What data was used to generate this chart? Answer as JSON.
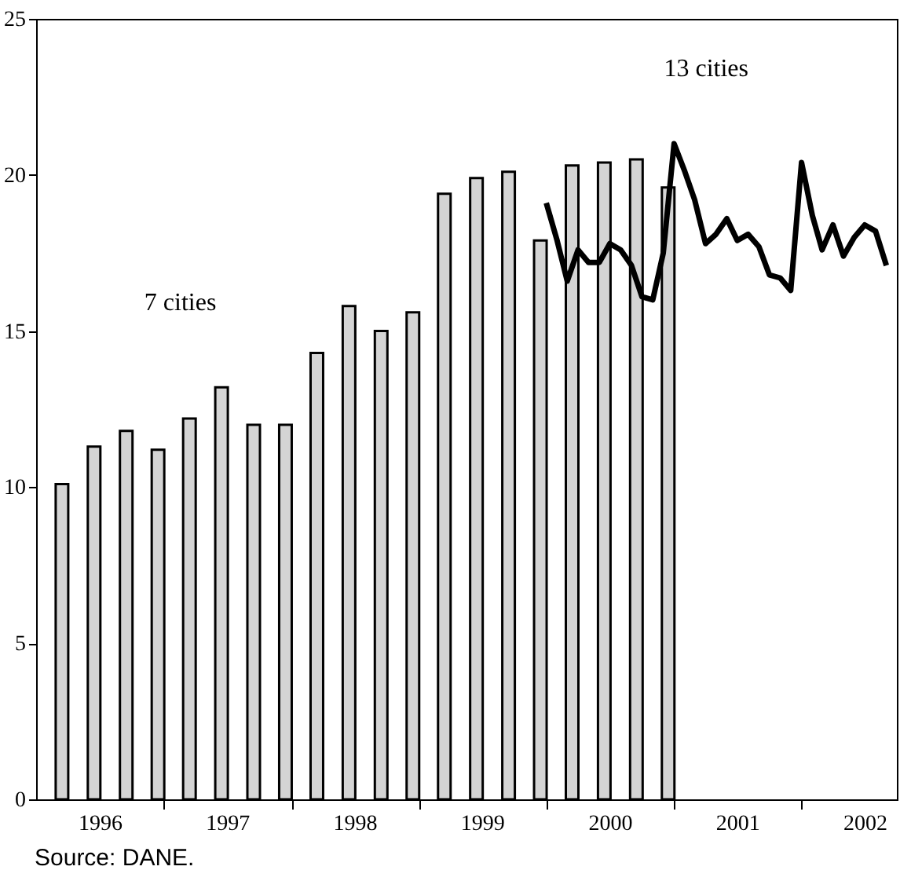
{
  "chart_data": {
    "type": "bar",
    "series": [
      {
        "color": "#d4d4d4",
        "x": [
          "1996-03-15",
          "1996-06-15",
          "1996-09-15",
          "1996-12-15",
          "1997-03-15",
          "1997-06-15",
          "1997-09-15",
          "1997-12-15",
          "1998-03-15",
          "1998-06-15",
          "1998-09-15",
          "1998-12-15",
          "1999-03-15",
          "1999-06-15",
          "1999-09-15",
          "1999-12-15",
          "2000-03-15",
          "2000-06-15",
          "2000-09-15",
          "2000-12-15"
        ],
        "values": [
          10.1,
          11.3,
          11.8,
          11.2,
          12.2,
          13.2,
          12.0,
          12.0,
          14.3,
          15.8,
          15.0,
          15.6,
          19.4,
          19.9,
          20.1,
          17.9,
          20.3,
          20.4,
          20.5,
          19.6
        ]
      },
      {
        "type": "line",
        "color": "#000000",
        "x": [
          "2000-01",
          "2000-02",
          "2000-03",
          "2000-04",
          "2000-05",
          "2000-06",
          "2000-07",
          "2000-08",
          "2000-09",
          "2000-10",
          "2000-11",
          "2000-12",
          "2001-01",
          "2001-02",
          "2001-03",
          "2001-04",
          "2001-05",
          "2001-06",
          "2001-07",
          "2001-08",
          "2001-09",
          "2001-10",
          "2001-11",
          "2001-12",
          "2002-01",
          "2002-02",
          "2002-03",
          "2002-04",
          "2002-05",
          "2002-06",
          "2002-07",
          "2002-08",
          "2002-09"
        ],
        "values": [
          19.1,
          17.9,
          16.6,
          17.6,
          17.2,
          17.2,
          17.8,
          17.6,
          17.1,
          16.1,
          16.0,
          17.5,
          21.0,
          20.1,
          19.2,
          17.8,
          18.1,
          18.6,
          17.9,
          18.1,
          17.7,
          16.8,
          16.7,
          16.3,
          20.4,
          18.7,
          17.6,
          18.4,
          17.4,
          18.0,
          18.4,
          18.2,
          17.1
        ]
      }
    ],
    "xlim": [
      "1996-01",
      "2002-10"
    ],
    "xticks": [
      {
        "value": "1996-07",
        "label": "1996"
      },
      {
        "value": "1997",
        "label": null
      },
      {
        "value": "1997-07",
        "label": "1997"
      },
      {
        "value": "1998",
        "label": null
      },
      {
        "value": "1998-07",
        "label": "1998"
      },
      {
        "value": "1999",
        "label": null
      },
      {
        "value": "1999-07",
        "label": "1999"
      },
      {
        "value": "2000",
        "label": null
      },
      {
        "value": "2000-07",
        "label": "2000"
      },
      {
        "value": "2001",
        "label": null
      },
      {
        "value": "2001-07",
        "label": "2001"
      },
      {
        "value": "2002",
        "label": null
      },
      {
        "value": "2002-07",
        "label": "2002"
      }
    ],
    "ylim": [
      0,
      25
    ],
    "yticks": [
      0,
      5,
      10,
      15,
      20,
      25
    ],
    "annotations": [
      "7 cities",
      "13 cities",
      "Source: DANE."
    ]
  }
}
